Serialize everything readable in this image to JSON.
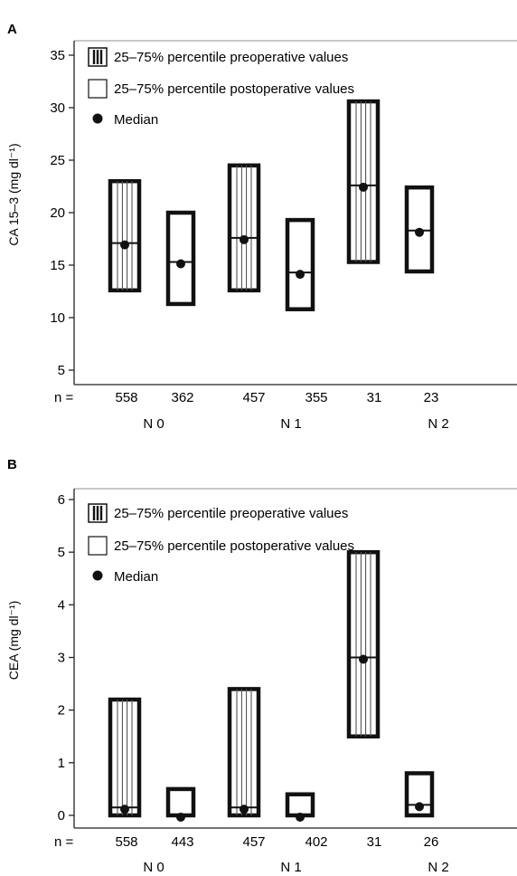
{
  "chart_data": [
    {
      "panel": "A",
      "type": "box",
      "ylabel": "CA 15–3 (mg dl⁻¹)",
      "ylim": [
        3,
        36
      ],
      "yticks": [
        5,
        10,
        15,
        20,
        25,
        30,
        35
      ],
      "n_label": "n =",
      "groups": [
        "N 0",
        "N 1",
        "N 2"
      ],
      "legend": {
        "pre": "25–75% percentile preoperative values",
        "post": "25–75% percentile postoperative values",
        "median": "Median"
      },
      "boxes": [
        {
          "group": "N 0",
          "phase": "pre",
          "n": "558",
          "q1": 12.6,
          "q3": 23.0,
          "median": 17.1
        },
        {
          "group": "N 0",
          "phase": "post",
          "n": "362",
          "q1": 11.3,
          "q3": 20.0,
          "median": 15.3
        },
        {
          "group": "N 1",
          "phase": "pre",
          "n": "457",
          "q1": 12.6,
          "q3": 24.5,
          "median": 17.6
        },
        {
          "group": "N 1",
          "phase": "post",
          "n": "355",
          "q1": 10.8,
          "q3": 19.3,
          "median": 14.3
        },
        {
          "group": "N 2",
          "phase": "pre",
          "n": "31",
          "q1": 15.3,
          "q3": 30.6,
          "median": 22.6
        },
        {
          "group": "N 2",
          "phase": "post",
          "n": "23",
          "q1": 14.4,
          "q3": 22.4,
          "median": 18.3
        }
      ]
    },
    {
      "panel": "B",
      "type": "box",
      "ylabel": "CEA (mg dl⁻¹)",
      "ylim": [
        -0.15,
        6.2
      ],
      "yticks": [
        0,
        1,
        2,
        3,
        4,
        5,
        6
      ],
      "n_label": "n =",
      "groups": [
        "N 0",
        "N 1",
        "N 2"
      ],
      "legend": {
        "pre": "25–75% percentile preoperative values",
        "post": "25–75% percentile postoperative values",
        "median": "Median"
      },
      "boxes": [
        {
          "group": "N 0",
          "phase": "pre",
          "n": "558",
          "q1": 0.0,
          "q3": 2.2,
          "median": 0.15
        },
        {
          "group": "N 0",
          "phase": "post",
          "n": "443",
          "q1": 0.0,
          "q3": 0.5,
          "median": 0.0
        },
        {
          "group": "N 1",
          "phase": "pre",
          "n": "457",
          "q1": 0.0,
          "q3": 2.4,
          "median": 0.15
        },
        {
          "group": "N 1",
          "phase": "post",
          "n": "402",
          "q1": 0.0,
          "q3": 0.4,
          "median": 0.0
        },
        {
          "group": "N 2",
          "phase": "pre",
          "n": "31",
          "q1": 1.5,
          "q3": 5.0,
          "median": 3.0
        },
        {
          "group": "N 2",
          "phase": "post",
          "n": "26",
          "q1": 0.0,
          "q3": 0.8,
          "median": 0.2
        }
      ]
    }
  ]
}
